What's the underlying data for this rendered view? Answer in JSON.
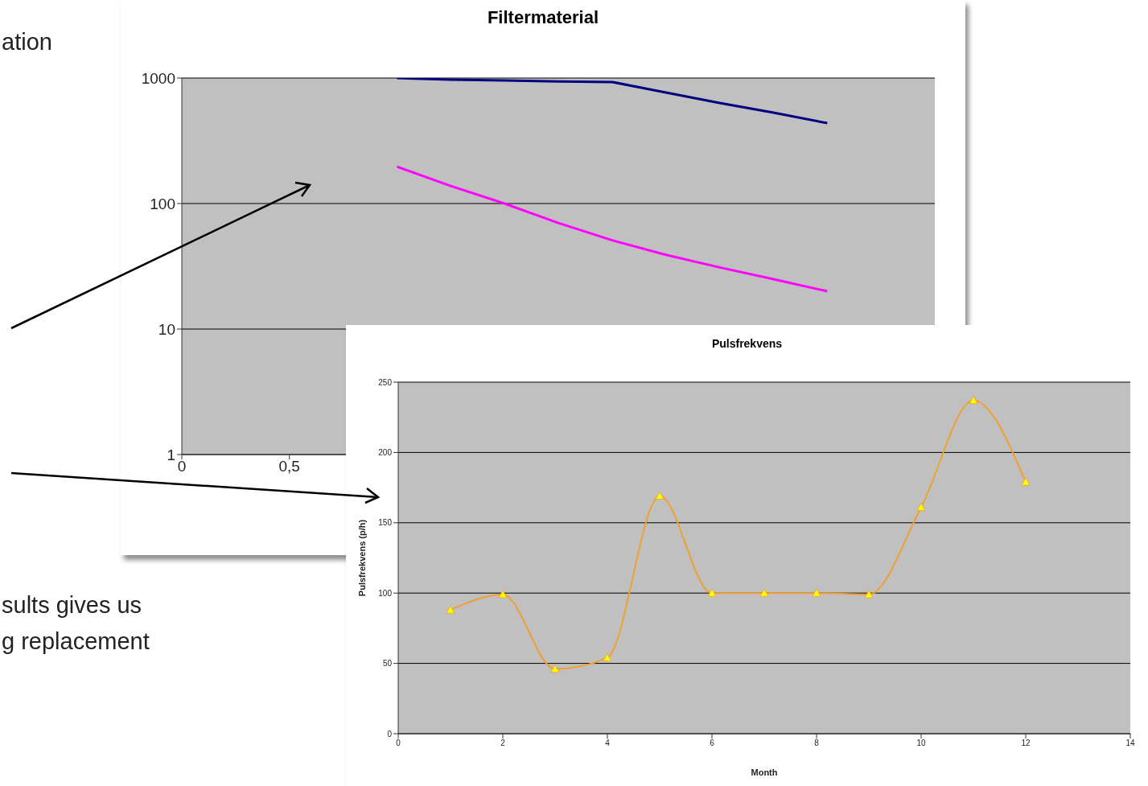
{
  "chart_data": [
    {
      "type": "line",
      "title": "Filtermaterial",
      "x": [
        1,
        1.25,
        1.5,
        1.75,
        2,
        2.25,
        2.5,
        2.75,
        3
      ],
      "series": [
        {
          "color": "#000080",
          "values": [
            1000,
            970,
            957,
            940,
            930,
            767,
            633,
            530,
            437
          ]
        },
        {
          "color": "#ff00ff",
          "values": [
            197,
            138,
            100,
            70,
            51,
            39,
            31,
            25,
            20
          ]
        }
      ],
      "xlim": [
        0,
        3.5
      ],
      "xticks": [
        0,
        {
          "value": 0.5,
          "label": "0,5"
        }
      ],
      "ylim": [
        1,
        1000
      ],
      "yticks": [
        1,
        10,
        100,
        1000
      ],
      "log": true,
      "grid": "y",
      "legend": false,
      "marker": "none",
      "annotations": [
        "ation",
        "sults gives us",
        "g replacement"
      ]
    },
    {
      "type": "line",
      "title": "Pulsfrekvens",
      "xlabel": "Month",
      "ylabel": "Pulsfrekvens (p/h)",
      "x": [
        1,
        2,
        3,
        4,
        5,
        6,
        7,
        8,
        9,
        10,
        11,
        12
      ],
      "series": [
        {
          "color": "#f0a030",
          "values": [
            88,
            99,
            46,
            54,
            169,
            100,
            100,
            100,
            99,
            161,
            237,
            179
          ]
        }
      ],
      "xlim": [
        0,
        14
      ],
      "xticks": [
        0,
        2,
        4,
        6,
        8,
        10,
        12,
        14
      ],
      "ylim": [
        0,
        250
      ],
      "yticks": [
        0,
        50,
        100,
        150,
        200,
        250
      ],
      "grid": "y",
      "legend": false,
      "marker": "triangle"
    }
  ]
}
